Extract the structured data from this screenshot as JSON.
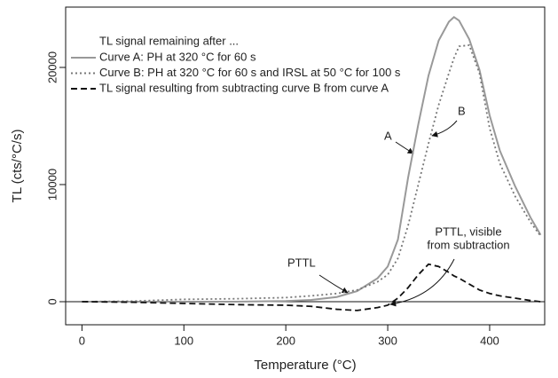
{
  "chart_data": {
    "type": "line",
    "x_label": "Temperature (°C)",
    "y_label": "TL (cts/°C/s)",
    "legend_title": "TL signal remaining after ...",
    "x": [
      0,
      50,
      100,
      150,
      200,
      225,
      250,
      270,
      290,
      300,
      310,
      320,
      330,
      340,
      350,
      360,
      365,
      370,
      380,
      390,
      400,
      410,
      425,
      440,
      450
    ],
    "series": [
      {
        "name": "Curve A: PH at 320 °C for 60 s",
        "color": "#999999",
        "style": "solid",
        "values": [
          0,
          0,
          0,
          0,
          60,
          150,
          400,
          900,
          2000,
          3000,
          5300,
          10600,
          15150,
          19300,
          22300,
          23900,
          24300,
          24000,
          22400,
          19800,
          15900,
          12900,
          9850,
          7200,
          5700
        ]
      },
      {
        "name": "Curve B: PH at 320 °C for 60 s and IRSL at 50 °C for 100 s",
        "color": "#777777",
        "style": "dotted",
        "values": [
          0,
          50,
          200,
          250,
          350,
          500,
          700,
          1000,
          1700,
          2300,
          3700,
          6500,
          10000,
          13500,
          16800,
          19500,
          20800,
          21800,
          21900,
          19500,
          14800,
          11800,
          9000,
          6800,
          5600
        ]
      },
      {
        "name": "TL signal resulting from subtracting curve B from curve A",
        "color": "#111111",
        "style": "dashed",
        "values": [
          0,
          -50,
          -150,
          -250,
          -300,
          -400,
          -650,
          -750,
          -500,
          -300,
          300,
          1200,
          2300,
          3200,
          3000,
          2500,
          2200,
          2000,
          1500,
          1000,
          700,
          500,
          300,
          100,
          0
        ]
      }
    ],
    "annotations": {
      "a": "A",
      "b": "B",
      "pttl": "PTTL",
      "pttl_visible": [
        "PTTL, visible",
        "from subtraction"
      ]
    },
    "xlim": [
      -16,
      454
    ],
    "ylim": [
      -1970,
      25150
    ],
    "xticks": [
      0,
      100,
      200,
      300,
      400
    ],
    "yticks": [
      0,
      10000,
      20000
    ],
    "zero_line": true
  }
}
